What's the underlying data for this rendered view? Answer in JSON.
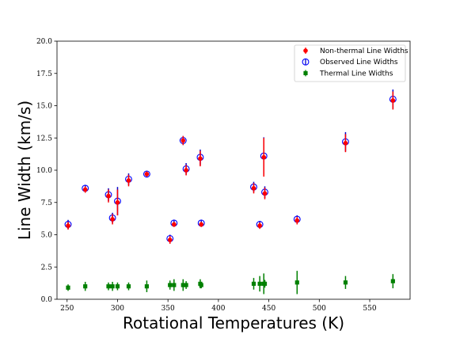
{
  "chart_data": {
    "type": "scatter",
    "title": "",
    "xlabel": "Rotational Temperatures (K)",
    "ylabel": "Line Width (km/s)",
    "xlim": [
      240,
      590
    ],
    "ylim": [
      0,
      20
    ],
    "xticks": [
      250,
      300,
      350,
      400,
      450,
      500,
      550
    ],
    "yticks": [
      0.0,
      2.5,
      5.0,
      7.5,
      10.0,
      12.5,
      15.0,
      17.5,
      20.0
    ],
    "xtick_labels": [
      "250",
      "300",
      "350",
      "400",
      "450",
      "500",
      "550"
    ],
    "ytick_labels": [
      "0.0",
      "2.5",
      "5.0",
      "7.5",
      "10.0",
      "12.5",
      "15.0",
      "17.5",
      "20.0"
    ],
    "grid": false,
    "legend_position": "top-right",
    "series": [
      {
        "name": "Non-thermal Line Widths",
        "marker": "filled-circle",
        "color": "#ff0000",
        "error_color": "#ff0000",
        "points": [
          {
            "x": 251,
            "y": 5.7,
            "err": 0.3
          },
          {
            "x": 268,
            "y": 8.5,
            "err": 0.25
          },
          {
            "x": 291,
            "y": 8.0,
            "err": 0.5
          },
          {
            "x": 295,
            "y": 6.2,
            "err": 0.4
          },
          {
            "x": 300,
            "y": 7.5,
            "err": 1.0
          },
          {
            "x": 311,
            "y": 9.2,
            "err": 0.45
          },
          {
            "x": 329,
            "y": 9.7,
            "err": 0.2
          },
          {
            "x": 352,
            "y": 4.6,
            "err": 0.3
          },
          {
            "x": 356,
            "y": 5.8,
            "err": 0.2
          },
          {
            "x": 365,
            "y": 12.3,
            "err": 0.35
          },
          {
            "x": 368,
            "y": 10.0,
            "err": 0.4
          },
          {
            "x": 382,
            "y": 10.9,
            "err": 0.6
          },
          {
            "x": 383,
            "y": 5.8,
            "err": 0.2
          },
          {
            "x": 435,
            "y": 8.6,
            "err": 0.4
          },
          {
            "x": 441,
            "y": 5.7,
            "err": 0.25
          },
          {
            "x": 445,
            "y": 11.0,
            "err": 1.5
          },
          {
            "x": 446,
            "y": 8.2,
            "err": 0.45
          },
          {
            "x": 478,
            "y": 6.1,
            "err": 0.3
          },
          {
            "x": 526,
            "y": 12.1,
            "err": 0.7
          },
          {
            "x": 573,
            "y": 15.4,
            "err": 0.7
          }
        ]
      },
      {
        "name": "Observed Line Widths",
        "marker": "open-circle",
        "color": "#0000ff",
        "error_color": "#0000cc",
        "points": [
          {
            "x": 251,
            "y": 5.8,
            "err": 0.35
          },
          {
            "x": 268,
            "y": 8.6,
            "err": 0.25
          },
          {
            "x": 291,
            "y": 8.1,
            "err": 0.5
          },
          {
            "x": 295,
            "y": 6.3,
            "err": 0.4
          },
          {
            "x": 300,
            "y": 7.6,
            "err": 1.1
          },
          {
            "x": 311,
            "y": 9.3,
            "err": 0.45
          },
          {
            "x": 329,
            "y": 9.7,
            "err": 0.2
          },
          {
            "x": 352,
            "y": 4.7,
            "err": 0.3
          },
          {
            "x": 356,
            "y": 5.9,
            "err": 0.2
          },
          {
            "x": 365,
            "y": 12.3,
            "err": 0.35
          },
          {
            "x": 368,
            "y": 10.1,
            "err": 0.45
          },
          {
            "x": 382,
            "y": 11.0,
            "err": 0.6
          },
          {
            "x": 383,
            "y": 5.9,
            "err": 0.2
          },
          {
            "x": 435,
            "y": 8.7,
            "err": 0.4
          },
          {
            "x": 441,
            "y": 5.8,
            "err": 0.25
          },
          {
            "x": 445,
            "y": 11.1,
            "err": 1.45
          },
          {
            "x": 446,
            "y": 8.3,
            "err": 0.45
          },
          {
            "x": 478,
            "y": 6.2,
            "err": 0.3
          },
          {
            "x": 526,
            "y": 12.2,
            "err": 0.75
          },
          {
            "x": 573,
            "y": 15.5,
            "err": 0.75
          }
        ]
      },
      {
        "name": "Thermal Line Widths",
        "marker": "filled-square",
        "color": "#008000",
        "error_color": "#008000",
        "points": [
          {
            "x": 251,
            "y": 0.9,
            "err": 0.25
          },
          {
            "x": 268,
            "y": 1.0,
            "err": 0.35
          },
          {
            "x": 291,
            "y": 1.0,
            "err": 0.3
          },
          {
            "x": 295,
            "y": 1.0,
            "err": 0.35
          },
          {
            "x": 300,
            "y": 1.0,
            "err": 0.3
          },
          {
            "x": 311,
            "y": 1.0,
            "err": 0.3
          },
          {
            "x": 329,
            "y": 1.0,
            "err": 0.45
          },
          {
            "x": 352,
            "y": 1.1,
            "err": 0.35
          },
          {
            "x": 356,
            "y": 1.1,
            "err": 0.45
          },
          {
            "x": 365,
            "y": 1.1,
            "err": 0.45
          },
          {
            "x": 368,
            "y": 1.1,
            "err": 0.3
          },
          {
            "x": 382,
            "y": 1.2,
            "err": 0.35
          },
          {
            "x": 383,
            "y": 1.1,
            "err": 0.25
          },
          {
            "x": 435,
            "y": 1.2,
            "err": 0.45
          },
          {
            "x": 441,
            "y": 1.2,
            "err": 0.6
          },
          {
            "x": 445,
            "y": 1.2,
            "err": 0.8
          },
          {
            "x": 446,
            "y": 1.2,
            "err": 0.3
          },
          {
            "x": 478,
            "y": 1.3,
            "err": 0.9
          },
          {
            "x": 526,
            "y": 1.3,
            "err": 0.5
          },
          {
            "x": 573,
            "y": 1.4,
            "err": 0.55
          }
        ]
      }
    ]
  }
}
